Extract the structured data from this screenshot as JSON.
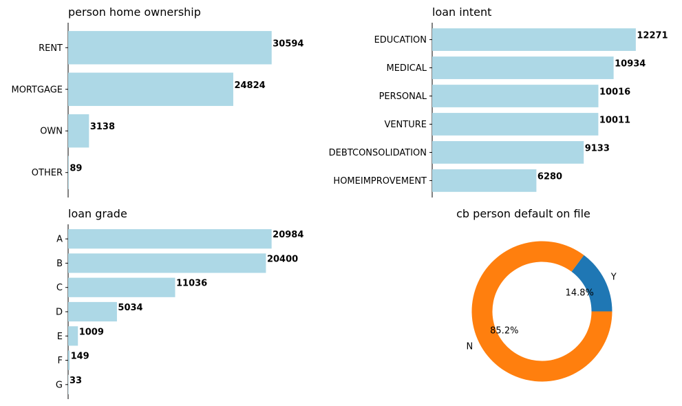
{
  "colors": {
    "bar": "#add8e6",
    "pie_y": "#1f77b4",
    "pie_n": "#ff7f0e",
    "axis": "#000000"
  },
  "chart_data": [
    {
      "type": "bar",
      "orientation": "horizontal",
      "title": "person home ownership",
      "categories": [
        "RENT",
        "MORTGAGE",
        "OWN",
        "OTHER"
      ],
      "values": [
        30594,
        24824,
        3138,
        89
      ],
      "xlim": [
        0,
        33000
      ]
    },
    {
      "type": "bar",
      "orientation": "horizontal",
      "title": "loan intent",
      "categories": [
        "EDUCATION",
        "MEDICAL",
        "PERSONAL",
        "VENTURE",
        "DEBTCONSOLIDATION",
        "HOMEIMPROVEMENT"
      ],
      "values": [
        12271,
        10934,
        10016,
        10011,
        9133,
        6280
      ],
      "xlim": [
        0,
        13230
      ]
    },
    {
      "type": "bar",
      "orientation": "horizontal",
      "title": "loan grade",
      "categories": [
        "A",
        "B",
        "C",
        "D",
        "E",
        "F",
        "G"
      ],
      "values": [
        20984,
        20400,
        11036,
        5034,
        1009,
        149,
        33
      ],
      "xlim": [
        0,
        22640
      ]
    },
    {
      "type": "pie",
      "donut": true,
      "title": "cb person default on file",
      "labels": [
        "Y",
        "N"
      ],
      "values": [
        14.8,
        85.2
      ],
      "percent_labels": [
        "14.8%",
        "85.2%"
      ]
    }
  ]
}
